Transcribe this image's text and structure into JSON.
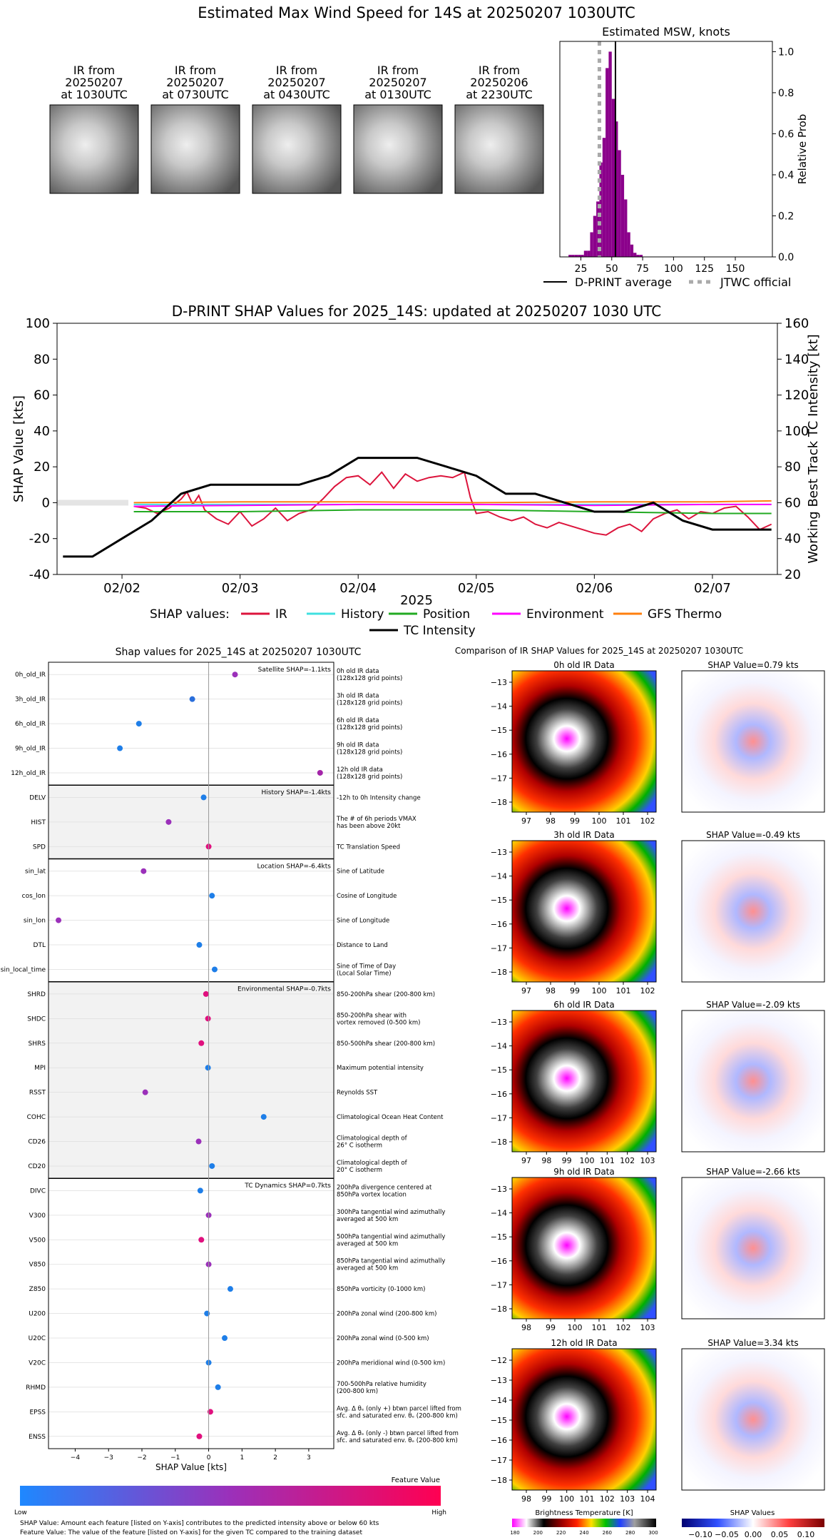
{
  "page_title": "Estimated Max Wind Speed for 14S at 20250207 1030UTC",
  "thumbnails": [
    {
      "label": [
        "IR from",
        "20250207",
        "at 1030UTC"
      ]
    },
    {
      "label": [
        "IR from",
        "20250207",
        "at 0730UTC"
      ]
    },
    {
      "label": [
        "IR from",
        "20250207",
        "at 0430UTC"
      ]
    },
    {
      "label": [
        "IR from",
        "20250207",
        "at 0130UTC"
      ]
    },
    {
      "label": [
        "IR from",
        "20250206",
        "at 2230UTC"
      ]
    }
  ],
  "chart_data": [
    {
      "type": "bar",
      "title": "Estimated MSW, knots",
      "ylabel": "Relative Prob",
      "xlim": [
        8,
        180
      ],
      "ylim": [
        0,
        1.05
      ],
      "xticks": [
        25,
        50,
        75,
        100,
        125,
        150
      ],
      "yticks": [
        0.0,
        0.2,
        0.4,
        0.6,
        0.8,
        1.0
      ],
      "bin_width": 2.5,
      "bins": [
        [
          15,
          0.01
        ],
        [
          17.5,
          0.01
        ],
        [
          20,
          0.01
        ],
        [
          22.5,
          0.01
        ],
        [
          25,
          0.01
        ],
        [
          27.5,
          0.03
        ],
        [
          30,
          0.03
        ],
        [
          32.5,
          0.12
        ],
        [
          35,
          0.2
        ],
        [
          37.5,
          0.27
        ],
        [
          40,
          0.46
        ],
        [
          42.5,
          0.58
        ],
        [
          45,
          0.92
        ],
        [
          47.5,
          1.0
        ],
        [
          50,
          0.77
        ],
        [
          52.5,
          0.66
        ],
        [
          55,
          0.52
        ],
        [
          57.5,
          0.4
        ],
        [
          60,
          0.28
        ],
        [
          62.5,
          0.12
        ],
        [
          65,
          0.06
        ],
        [
          67.5,
          0.02
        ],
        [
          70,
          0.01
        ],
        [
          72.5,
          0.01
        ]
      ],
      "series": [
        {
          "name": "D-PRINT average",
          "x": 53,
          "color": "#000000",
          "style": "solid"
        },
        {
          "name": "JTWC official",
          "x": 40,
          "color": "#aaaaaa",
          "style": "dotted"
        }
      ],
      "bar_color": "#8b008b"
    },
    {
      "type": "line",
      "title": "D-PRINT SHAP Values for 2025_14S: updated at 20250207 1030 UTC",
      "xlabel": "2025",
      "ylabel": "SHAP Value [kts]",
      "ylabel_right": "Working Best Track TC Intensity [kt]",
      "xlim": [
        1.45,
        7.55
      ],
      "ylim": [
        -40,
        100
      ],
      "ylim_right": [
        20,
        160
      ],
      "xticks": [
        {
          "v": 2,
          "label": "02/02"
        },
        {
          "v": 3,
          "label": "02/03"
        },
        {
          "v": 4,
          "label": "02/04"
        },
        {
          "v": 5,
          "label": "02/05"
        },
        {
          "v": 6,
          "label": "02/06"
        },
        {
          "v": 7,
          "label": "02/07"
        }
      ],
      "yticks": [
        -40,
        -20,
        0,
        20,
        40,
        60,
        80,
        100
      ],
      "yticks_right": [
        20,
        40,
        60,
        80,
        100,
        120,
        140,
        160
      ],
      "legend_prefix": "SHAP values:",
      "series": [
        {
          "name": "IR",
          "color": "#dc143c",
          "x": [
            2.1,
            2.2,
            2.3,
            2.4,
            2.5,
            2.55,
            2.6,
            2.65,
            2.7,
            2.8,
            2.9,
            3.0,
            3.1,
            3.2,
            3.3,
            3.4,
            3.5,
            3.6,
            3.7,
            3.8,
            3.9,
            4.0,
            4.1,
            4.2,
            4.3,
            4.4,
            4.5,
            4.6,
            4.7,
            4.8,
            4.9,
            4.95,
            5.0,
            5.1,
            5.2,
            5.3,
            5.4,
            5.5,
            5.6,
            5.7,
            5.8,
            5.9,
            6.0,
            6.1,
            6.2,
            6.3,
            6.4,
            6.5,
            6.6,
            6.7,
            6.8,
            6.9,
            7.0,
            7.1,
            7.2,
            7.3,
            7.4,
            7.5
          ],
          "y": [
            -2,
            -3,
            -6,
            -3,
            2,
            6,
            -1,
            4,
            -4,
            -9,
            -12,
            -5,
            -13,
            -9,
            -3,
            -10,
            -6,
            -4,
            2,
            9,
            14,
            15,
            10,
            17,
            8,
            16,
            12,
            14,
            15,
            14,
            17,
            3,
            -6,
            -5,
            -8,
            -10,
            -8,
            -12,
            -14,
            -11,
            -13,
            -15,
            -17,
            -18,
            -14,
            -12,
            -16,
            -9,
            -6,
            -4,
            -9,
            -5,
            -6,
            -3,
            -2,
            -8,
            -15,
            -12
          ]
        },
        {
          "name": "History",
          "color": "#40e0e0",
          "x": [
            2.1,
            7.5
          ],
          "y": [
            -1,
            -1
          ]
        },
        {
          "name": "Position",
          "color": "#22aa22",
          "x": [
            2.1,
            3.0,
            4.0,
            5.0,
            6.0,
            7.0,
            7.5
          ],
          "y": [
            -5,
            -5,
            -4,
            -4,
            -5,
            -6,
            -6
          ]
        },
        {
          "name": "Environment",
          "color": "#ff00ff",
          "x": [
            2.1,
            3.0,
            4.0,
            5.0,
            6.0,
            7.0,
            7.5
          ],
          "y": [
            -2,
            -1.5,
            -1,
            -1,
            -1.5,
            -1,
            -1
          ]
        },
        {
          "name": "GFS Thermo",
          "color": "#ff7f0e",
          "x": [
            2.1,
            3.0,
            4.0,
            5.0,
            6.0,
            7.0,
            7.5
          ],
          "y": [
            0,
            0.5,
            0.5,
            0,
            0.5,
            0.5,
            1
          ]
        },
        {
          "name": "TC Intensity",
          "color": "#000000",
          "axis": "right",
          "x": [
            1.5,
            1.75,
            2.0,
            2.25,
            2.5,
            2.75,
            3.0,
            3.25,
            3.5,
            3.75,
            4.0,
            4.25,
            4.5,
            4.75,
            5.0,
            5.25,
            5.5,
            5.75,
            6.0,
            6.25,
            6.5,
            6.75,
            7.0,
            7.25,
            7.5
          ],
          "y": [
            30,
            30,
            40,
            50,
            65,
            70,
            70,
            70,
            70,
            75,
            85,
            85,
            85,
            80,
            75,
            65,
            65,
            60,
            55,
            55,
            60,
            50,
            45,
            45,
            45
          ]
        }
      ]
    },
    {
      "type": "scatter",
      "title": "Shap values for 2025_14S at 20250207 1030UTC",
      "xlabel": "SHAP Value [kts]",
      "xlim": [
        -4.8,
        3.75
      ],
      "xticks": [
        -4,
        -3,
        -2,
        -1,
        0,
        1,
        2,
        3
      ],
      "groups": [
        {
          "title": "Satellite SHAP=-1.1kts",
          "shaded": false,
          "features": [
            {
              "name": "0h_old_IR",
              "desc": [
                "0h old IR data",
                "(128x128 grid points)"
              ],
              "value": 0.79,
              "color": "#9b30ba"
            },
            {
              "name": "3h_old_IR",
              "desc": [
                "3h old IR data",
                "(128x128 grid points)"
              ],
              "value": -0.49,
              "color": "#2a6edb"
            },
            {
              "name": "6h_old_IR",
              "desc": [
                "6h old IR data",
                "(128x128 grid points)"
              ],
              "value": -2.09,
              "color": "#1e7ee8"
            },
            {
              "name": "9h_old_IR",
              "desc": [
                "9h old IR data",
                "(128x128 grid points)"
              ],
              "value": -2.66,
              "color": "#1e7ee8"
            },
            {
              "name": "12h_old_IR",
              "desc": [
                "12h old IR data",
                "(128x128 grid points)"
              ],
              "value": 3.34,
              "color": "#a325a8"
            }
          ]
        },
        {
          "title": "History SHAP=-1.4kts",
          "shaded": true,
          "features": [
            {
              "name": "DELV",
              "desc": [
                "-12h to 0h Intensity change"
              ],
              "value": -0.15,
              "color": "#1e7ee8"
            },
            {
              "name": "HIST",
              "desc": [
                "The # of 6h periods VMAX",
                "has been above 20kt"
              ],
              "value": -1.2,
              "color": "#9b30ba"
            },
            {
              "name": "SPD",
              "desc": [
                "TC Translation Speed"
              ],
              "value": 0.0,
              "color": "#e0107e"
            }
          ]
        },
        {
          "title": "Location SHAP=-6.4kts",
          "shaded": false,
          "features": [
            {
              "name": "sin_lat",
              "desc": [
                "Sine of Latitude"
              ],
              "value": -1.95,
              "color": "#9b30ba"
            },
            {
              "name": "cos_lon",
              "desc": [
                "Cosine of Longitude"
              ],
              "value": 0.1,
              "color": "#1e7ee8"
            },
            {
              "name": "sin_lon",
              "desc": [
                "Sine of Longitude"
              ],
              "value": -4.5,
              "color": "#9b30ba"
            },
            {
              "name": "DTL",
              "desc": [
                "Distance to Land"
              ],
              "value": -0.28,
              "color": "#1e7ee8"
            },
            {
              "name": "sin_local_time",
              "desc": [
                "Sine of Time of Day",
                "(Local Solar Time)"
              ],
              "value": 0.18,
              "color": "#1e7ee8"
            }
          ]
        },
        {
          "title": "Environmental SHAP=-0.7kts",
          "shaded": true,
          "features": [
            {
              "name": "SHRD",
              "desc": [
                "850-200hPa shear (200-800 km)"
              ],
              "value": -0.08,
              "color": "#e0107e"
            },
            {
              "name": "SHDC",
              "desc": [
                "850-200hPa shear with",
                "vortex removed (0-500 km)"
              ],
              "value": -0.02,
              "color": "#e0107e"
            },
            {
              "name": "SHRS",
              "desc": [
                "850-500hPa shear (200-800 km)"
              ],
              "value": -0.22,
              "color": "#e0107e"
            },
            {
              "name": "MPI",
              "desc": [
                "Maximum potential intensity"
              ],
              "value": -0.02,
              "color": "#1e7ee8"
            },
            {
              "name": "RSST",
              "desc": [
                "Reynolds SST"
              ],
              "value": -1.9,
              "color": "#9b30ba"
            },
            {
              "name": "COHC",
              "desc": [
                "Climatological Ocean Heat Content"
              ],
              "value": 1.65,
              "color": "#1e7ee8"
            },
            {
              "name": "CD26",
              "desc": [
                "Climatological depth of",
                "26° C isotherm"
              ],
              "value": -0.3,
              "color": "#9b30ba"
            },
            {
              "name": "CD20",
              "desc": [
                "Climatological depth of",
                "20° C isotherm"
              ],
              "value": 0.1,
              "color": "#1e7ee8"
            }
          ]
        },
        {
          "title": "TC Dynamics SHAP=0.7kts",
          "shaded": false,
          "features": [
            {
              "name": "DIVC",
              "desc": [
                "200hPa divergence centered at",
                "850hPa vortex location"
              ],
              "value": -0.25,
              "color": "#1e7ee8"
            },
            {
              "name": "V300",
              "desc": [
                "300hPa tangential wind azimuthally",
                "averaged at 500 km"
              ],
              "value": 0.0,
              "color": "#9b30ba"
            },
            {
              "name": "V500",
              "desc": [
                "500hPa tangential wind azimuthally",
                "averaged at 500 km"
              ],
              "value": -0.22,
              "color": "#e0107e"
            },
            {
              "name": "V850",
              "desc": [
                "850hPa tangential wind azimuthally",
                "averaged at 500 km"
              ],
              "value": 0.0,
              "color": "#9b30ba"
            },
            {
              "name": "Z850",
              "desc": [
                "850hPa vorticity (0-1000 km)"
              ],
              "value": 0.65,
              "color": "#1e7ee8"
            },
            {
              "name": "U200",
              "desc": [
                "200hPa zonal wind (200-800 km)"
              ],
              "value": -0.05,
              "color": "#1e7ee8"
            },
            {
              "name": "U20C",
              "desc": [
                "200hPa zonal wind (0-500 km)"
              ],
              "value": 0.48,
              "color": "#1e7ee8"
            },
            {
              "name": "V20C",
              "desc": [
                "200hPa meridional wind (0-500 km)"
              ],
              "value": 0.0,
              "color": "#1e7ee8"
            },
            {
              "name": "RHMD",
              "desc": [
                "700-500hPa relative humidity",
                "(200-800 km)"
              ],
              "value": 0.28,
              "color": "#1e7ee8"
            },
            {
              "name": "EPSS",
              "desc": [
                "Avg. Δ θₑ (only +) btwn parcel lifted from",
                "sfc. and saturated env. θₑ (200-800 km)"
              ],
              "value": 0.05,
              "color": "#e0107e"
            },
            {
              "name": "ENSS",
              "desc": [
                "Avg. Δ θₑ (only -) btwn parcel lifted from",
                "sfc. and saturated env. θₑ (200-800 km)"
              ],
              "value": -0.28,
              "color": "#e0107e"
            }
          ]
        }
      ],
      "colorbar": {
        "title": "Feature Value",
        "low": "Low",
        "high": "High"
      },
      "footnotes": [
        "SHAP Value: Amount each feature [listed on Y-axis] contributes to the predicted intensity above or below 60 kts",
        "Feature Value: The value of the feature [listed on Y-axis] for the given TC compared to the training dataset"
      ]
    }
  ],
  "ir_comparison": {
    "title": "Comparison of IR SHAP Values for 2025_14S at 20250207 1030UTC",
    "rows": [
      {
        "ir_title": "0h old IR Data",
        "shap_title": "SHAP Value=0.79 kts",
        "xticks": [
          "97",
          "98",
          "99",
          "100",
          "101",
          "102"
        ],
        "yticks": [
          "-13",
          "-14",
          "-15",
          "-16",
          "-17",
          "-18"
        ]
      },
      {
        "ir_title": "3h old IR Data",
        "shap_title": "SHAP Value=-0.49 kts",
        "xticks": [
          "97",
          "98",
          "99",
          "100",
          "101",
          "102"
        ],
        "yticks": [
          "-13",
          "-14",
          "-15",
          "-16",
          "-17",
          "-18"
        ]
      },
      {
        "ir_title": "6h old IR Data",
        "shap_title": "SHAP Value=-2.09 kts",
        "xticks": [
          "97",
          "98",
          "99",
          "100",
          "101",
          "102",
          "103"
        ],
        "yticks": [
          "-13",
          "-14",
          "-15",
          "-16",
          "-17",
          "-18"
        ]
      },
      {
        "ir_title": "9h old IR Data",
        "shap_title": "SHAP Value=-2.66 kts",
        "xticks": [
          "98",
          "99",
          "100",
          "101",
          "102",
          "103"
        ],
        "yticks": [
          "-13",
          "-14",
          "-15",
          "-16",
          "-17",
          "-18"
        ]
      },
      {
        "ir_title": "12h old IR Data",
        "shap_title": "SHAP Value=3.34 kts",
        "xticks": [
          "98",
          "99",
          "100",
          "101",
          "102",
          "103",
          "104"
        ],
        "yticks": [
          "-12",
          "-13",
          "-14",
          "-15",
          "-16",
          "-17",
          "-18"
        ]
      }
    ],
    "bt_colorbar": {
      "label": "Brightness Temperature [K]",
      "ticks": [
        "180",
        "200",
        "220",
        "240",
        "260",
        "280",
        "300"
      ]
    },
    "shap_colorbar": {
      "label": "SHAP Values",
      "ticks": [
        "−0.10",
        "−0.05",
        "0.00",
        "0.05",
        "0.10"
      ]
    }
  }
}
